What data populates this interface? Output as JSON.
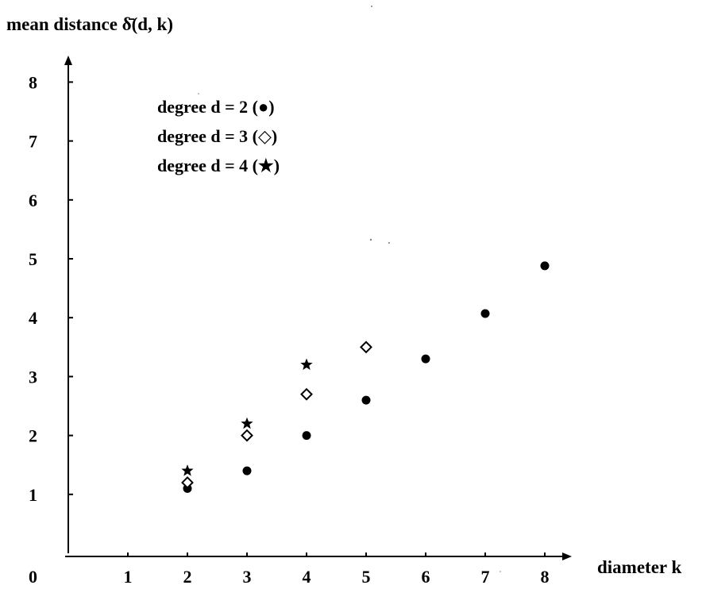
{
  "chart_data": {
    "type": "scatter",
    "title": "",
    "ylabel": "mean distance δ̄(d, k)",
    "xlabel": "diameter k",
    "origin_label": "0",
    "xlim": [
      0,
      8
    ],
    "ylim": [
      0,
      8
    ],
    "x_ticks": [
      "1",
      "2",
      "3",
      "4",
      "5",
      "6",
      "7",
      "8"
    ],
    "y_ticks": [
      "1",
      "2",
      "3",
      "4",
      "5",
      "6",
      "7",
      "8"
    ],
    "grid": false,
    "legend_position": "top-left",
    "series": [
      {
        "name": "degree d = 2 (●)",
        "marker": "filled-circle",
        "x": [
          2,
          3,
          4,
          5,
          6,
          7,
          8
        ],
        "y": [
          1.1,
          1.4,
          2.0,
          2.6,
          3.3,
          4.07,
          4.88
        ]
      },
      {
        "name": "degree d = 3 (◇)",
        "marker": "open-diamond",
        "x": [
          2,
          3,
          4,
          5
        ],
        "y": [
          1.2,
          2.0,
          2.7,
          3.5
        ]
      },
      {
        "name": "degree d = 4 (★)",
        "marker": "star",
        "x": [
          2,
          3,
          4
        ],
        "y": [
          1.4,
          2.2,
          3.2
        ]
      }
    ]
  }
}
